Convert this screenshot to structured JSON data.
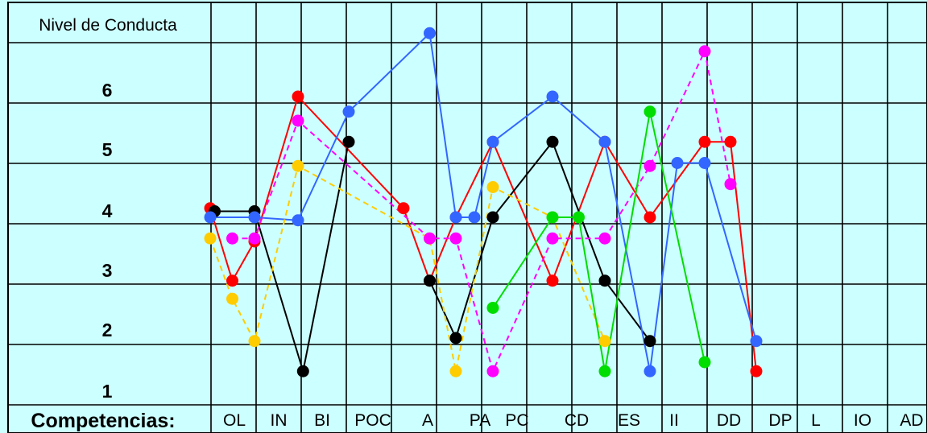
{
  "chart_data": {
    "type": "line",
    "title": "Nivel de Conducta",
    "xlabel": "Competencias:",
    "ylabel": "",
    "categories": [
      "OL",
      "IN",
      "BI",
      "POC",
      "A",
      "PA",
      "PC",
      "CD",
      "ES",
      "II",
      "DD",
      "DP",
      "L",
      "IO",
      "AD"
    ],
    "ylevels": [
      "6",
      "5",
      "4",
      "3",
      "2",
      "1"
    ],
    "series": [
      {
        "color": "#ff0000",
        "dashed": false,
        "points": [
          [
            0,
            3.75
          ],
          [
            0.5,
            2.55
          ],
          [
            1,
            3.2
          ],
          [
            2,
            5.6
          ],
          [
            4,
            3.75
          ],
          [
            4.5,
            2.55
          ],
          [
            5,
            3.6
          ],
          [
            6,
            4.85
          ],
          [
            7,
            2.55
          ],
          [
            8,
            4.85
          ],
          [
            9,
            3.6
          ],
          [
            10,
            4.85
          ],
          [
            10.5,
            4.85
          ],
          [
            11,
            1.05
          ]
        ]
      },
      {
        "color": "#000000",
        "dashed": false,
        "points": [
          [
            0.1,
            3.7
          ],
          [
            1,
            3.7
          ],
          [
            2.1,
            1.05
          ],
          [
            3,
            4.85
          ]
        ]
      },
      {
        "color": "#000000",
        "dashed": false,
        "points": [
          [
            4.5,
            2.55
          ],
          [
            5,
            1.6
          ],
          [
            6,
            3.6
          ],
          [
            7,
            4.85
          ],
          [
            8,
            2.55
          ],
          [
            9,
            1.55
          ]
        ]
      },
      {
        "color": "#3366ff",
        "dashed": false,
        "points": [
          [
            0,
            3.6
          ],
          [
            1,
            3.6
          ],
          [
            2,
            3.55
          ],
          [
            3,
            5.35
          ],
          [
            4.5,
            6.65
          ],
          [
            5,
            3.6
          ],
          [
            5.5,
            3.6
          ],
          [
            6,
            4.85
          ],
          [
            7,
            5.6
          ],
          [
            8,
            4.85
          ],
          [
            9,
            1.05
          ],
          [
            9.5,
            4.5
          ],
          [
            10,
            4.5
          ],
          [
            11,
            1.55
          ]
        ]
      },
      {
        "color": "#ffcc00",
        "dashed": true,
        "points": [
          [
            0,
            3.25
          ],
          [
            0.5,
            2.25
          ],
          [
            1,
            1.55
          ],
          [
            2,
            4.45
          ],
          [
            4.5,
            3.25
          ],
          [
            5,
            1.05
          ],
          [
            6,
            4.1
          ],
          [
            7,
            3.6
          ],
          [
            8,
            1.55
          ]
        ]
      },
      {
        "color": "#ff00ff",
        "dashed": true,
        "points": [
          [
            0.5,
            3.25
          ],
          [
            1,
            3.25
          ],
          [
            2,
            5.2
          ],
          [
            4.5,
            3.25
          ],
          [
            5,
            3.25
          ],
          [
            6,
            1.05
          ],
          [
            7,
            3.25
          ],
          [
            8,
            3.25
          ],
          [
            9,
            4.45
          ],
          [
            10,
            6.35
          ],
          [
            10.5,
            4.15
          ]
        ]
      },
      {
        "color": "#00dd00",
        "dashed": false,
        "points": [
          [
            6,
            2.1
          ],
          [
            7,
            3.6
          ],
          [
            7.5,
            3.6
          ],
          [
            8,
            1.05
          ],
          [
            9,
            5.35
          ],
          [
            10,
            1.2
          ]
        ]
      }
    ]
  }
}
